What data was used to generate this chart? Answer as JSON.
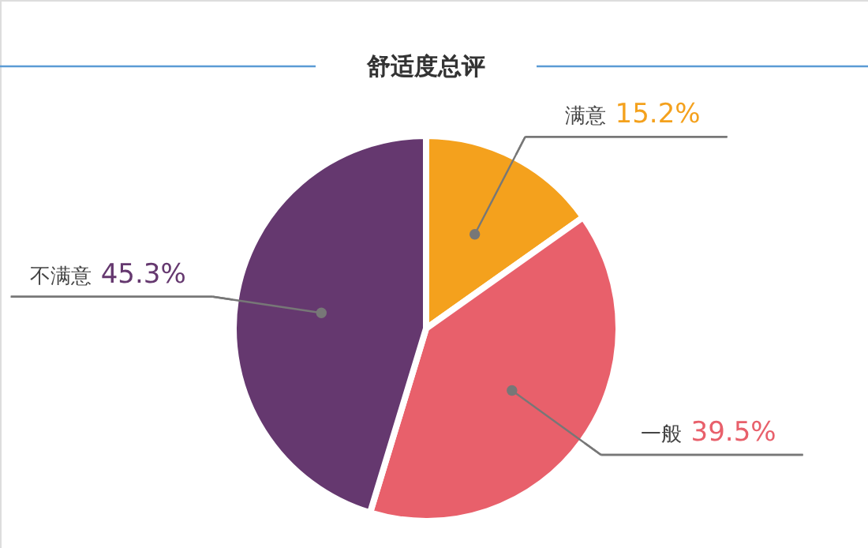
{
  "chart_data": {
    "type": "pie",
    "title": "舒适度总评",
    "categories": [
      "满意",
      "一般",
      "不满意"
    ],
    "values": [
      15.2,
      39.5,
      45.3
    ],
    "colors": [
      "#f4a11d",
      "#e8606b",
      "#65386f"
    ],
    "value_labels": [
      "15.2%",
      "39.5%",
      "45.3%"
    ]
  }
}
